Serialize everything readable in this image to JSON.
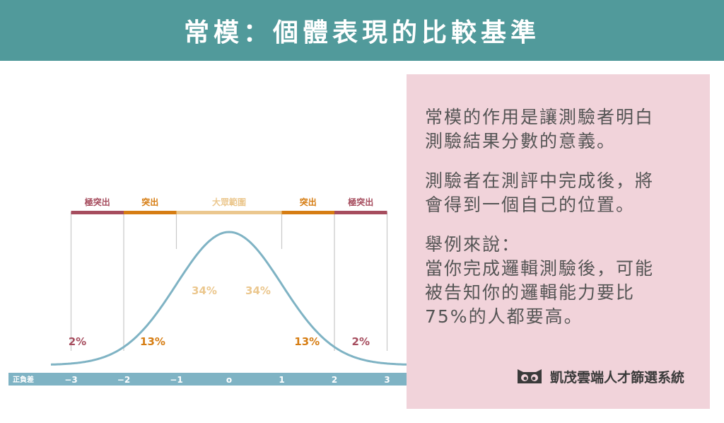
{
  "header": {
    "title": "常模：個體表現的比較基準"
  },
  "panel": {
    "paragraphs": [
      [
        "常模的作用是讓測驗者明白",
        "測驗結果分數的意義。"
      ],
      [
        "測驗者在測評中完成後，將",
        "會得到一個自己的位置。"
      ],
      [
        "舉例來說：",
        "當你完成邏輯測驗後，可能",
        "被告知你的邏輯能力要比",
        "75%的人都要高。"
      ]
    ]
  },
  "brand": {
    "name": "凱茂雲端人才篩選系統",
    "icon": "owl-eyes-icon"
  },
  "colors": {
    "header_bg": "#519a9b",
    "panel_bg": "#f1d3da",
    "curve": "#7fb3c4",
    "axis_bar": "#7fb3c4",
    "extreme": "#a64d5e",
    "outstanding": "#d67d13",
    "general": "#ebc78e"
  },
  "diagram": {
    "axis_label": "正負差",
    "ticks": [
      "−3",
      "−2",
      "−1",
      "o",
      "1",
      "2",
      "3"
    ],
    "bands": [
      {
        "label": "極突出",
        "color": "#a64d5e"
      },
      {
        "label": "突出",
        "color": "#d67d13"
      },
      {
        "label": "大眾範圍",
        "color": "#ebc78e"
      },
      {
        "label": "突出",
        "color": "#d67d13"
      },
      {
        "label": "極突出",
        "color": "#a64d5e"
      }
    ],
    "percents": [
      {
        "label": "2%",
        "color": "#a64d5e"
      },
      {
        "label": "13%",
        "color": "#d67d13"
      },
      {
        "label": "34%",
        "color": "#ebc78e"
      },
      {
        "label": "34%",
        "color": "#ebc78e"
      },
      {
        "label": "13%",
        "color": "#d67d13"
      },
      {
        "label": "2%",
        "color": "#a64d5e"
      }
    ]
  }
}
